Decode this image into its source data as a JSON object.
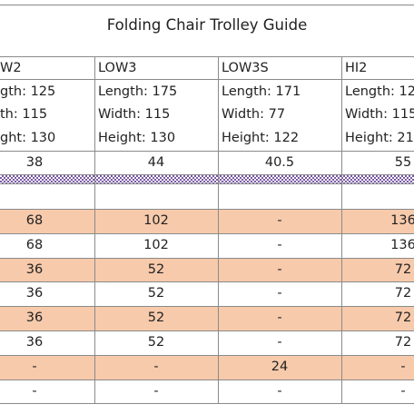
{
  "title": "Folding Chair Trolley Guide",
  "header_rows": [
    [
      "W2",
      "LOW3",
      "LOW3S",
      "HI2"
    ],
    [
      "gth: 125",
      "Length: 175",
      "Length: 171",
      "Length: 12"
    ],
    [
      "th: 115",
      "Width: 115",
      "Width: 77",
      "Width: 115"
    ],
    [
      "ght: 130",
      "Height: 130",
      "Height: 122",
      "Height: 21"
    ]
  ],
  "summary_row": [
    "38",
    "44",
    "40.5",
    "55"
  ],
  "rows": [
    [
      "68",
      "102",
      "-",
      "136"
    ],
    [
      "68",
      "102",
      "-",
      "136"
    ],
    [
      "36",
      "52",
      "-",
      "72"
    ],
    [
      "36",
      "52",
      "-",
      "72"
    ],
    [
      "36",
      "52",
      "-",
      "72"
    ],
    [
      "36",
      "52",
      "-",
      "72"
    ],
    [
      "-",
      "-",
      "24",
      "-"
    ],
    [
      "-",
      "-",
      "-",
      "-"
    ]
  ]
}
